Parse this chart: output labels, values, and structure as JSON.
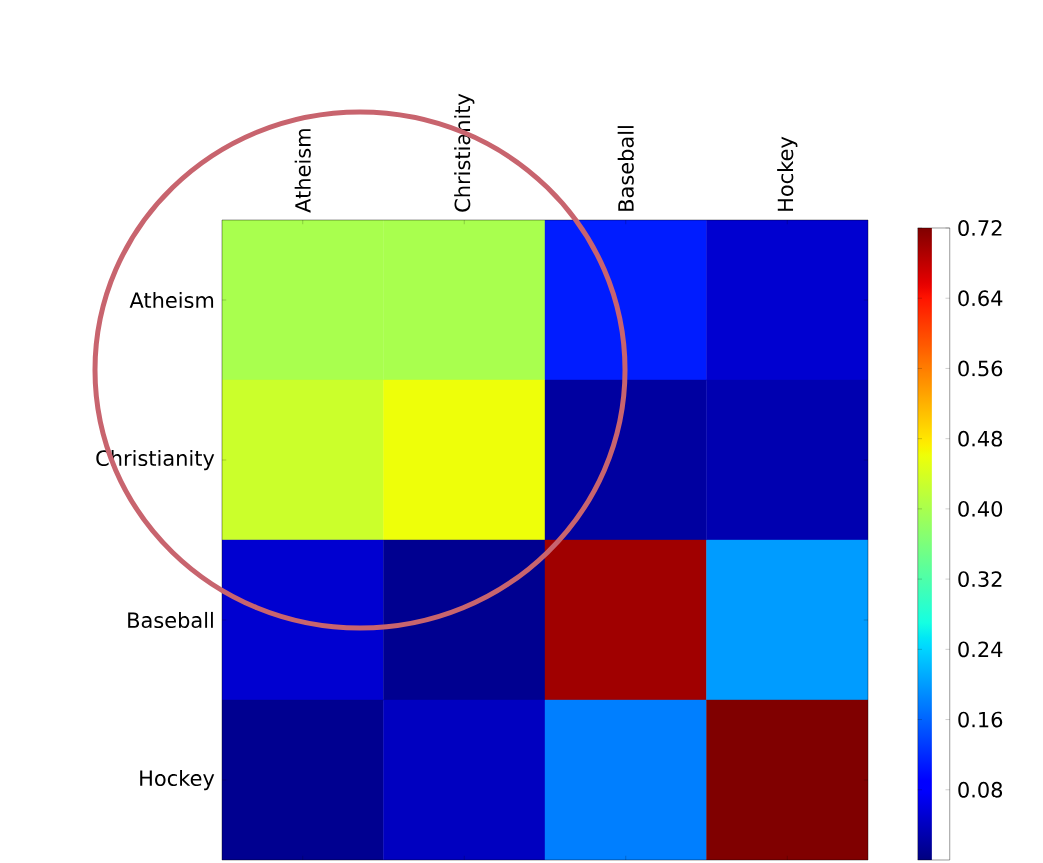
{
  "chart_data": {
    "type": "heatmap",
    "categories": [
      "Atheism",
      "Christianity",
      "Baseball",
      "Hockey"
    ],
    "y_categories": [
      "Atheism",
      "Christianity",
      "Baseball",
      "Hockey"
    ],
    "cells": [
      [
        0.4,
        0.4,
        0.11,
        0.05
      ],
      [
        0.43,
        0.46,
        0.02,
        0.03
      ],
      [
        0.05,
        0.01,
        0.7,
        0.2
      ],
      [
        0.01,
        0.04,
        0.18,
        0.72
      ]
    ],
    "clim": [
      0,
      0.72
    ],
    "cticks": [
      0.08,
      0.16,
      0.24,
      0.32,
      {
        "value": 0.4,
        "label": "0.40"
      },
      0.48,
      0.56,
      0.64,
      0.72
    ]
  }
}
